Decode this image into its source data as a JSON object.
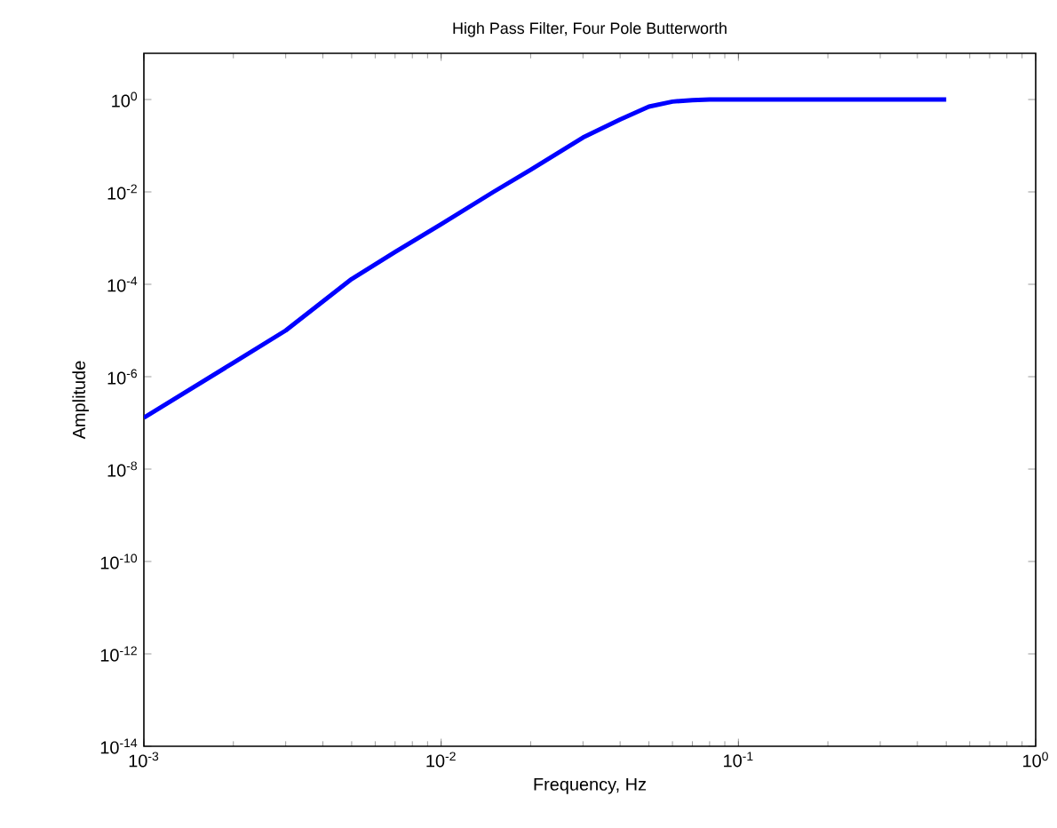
{
  "chart_data": {
    "type": "line",
    "title": "High Pass Filter, Four Pole Butterworth",
    "xlabel": "Frequency, Hz",
    "ylabel": "Amplitude",
    "log": "xy",
    "grid": false,
    "marker": "none",
    "line_style": "solid",
    "xlim": [
      0.001,
      1
    ],
    "ylim": [
      1e-14,
      10
    ],
    "xticks": [
      {
        "value": 0.001,
        "label": "10$^{-3}$"
      },
      {
        "value": 0.01,
        "label": "10$^{-2}$"
      },
      {
        "value": 0.1,
        "label": "10$^{-1}$"
      },
      {
        "value": 1,
        "label": "10$^{0}$"
      }
    ],
    "yticks": [
      {
        "value": 1e-14,
        "label": "10$^{-14}$"
      },
      {
        "value": 1e-12,
        "label": "10$^{-12}$"
      },
      {
        "value": 1e-10,
        "label": "10$^{-10}$"
      },
      {
        "value": 1e-08,
        "label": "10$^{-8}$"
      },
      {
        "value": 1e-06,
        "label": "10$^{-6}$"
      },
      {
        "value": 0.0001,
        "label": "10$^{-4}$"
      },
      {
        "value": 0.01,
        "label": "10$^{-2}$"
      },
      {
        "value": 1,
        "label": "10$^{0}$"
      }
    ],
    "x": [
      0.001,
      0.002,
      0.003,
      0.005,
      0.007,
      0.01,
      0.015,
      0.02,
      0.03,
      0.04,
      0.05,
      0.06,
      0.07,
      0.08,
      0.1,
      0.2,
      0.3,
      0.5
    ],
    "series": [
      {
        "color": "#0000ff",
        "values": [
          1.3e-07,
          2e-06,
          1e-05,
          0.00013,
          0.0005,
          0.002,
          0.01,
          0.03,
          0.15,
          0.37,
          0.7,
          0.9,
          0.97,
          1,
          1,
          1,
          1,
          1
        ]
      }
    ]
  }
}
